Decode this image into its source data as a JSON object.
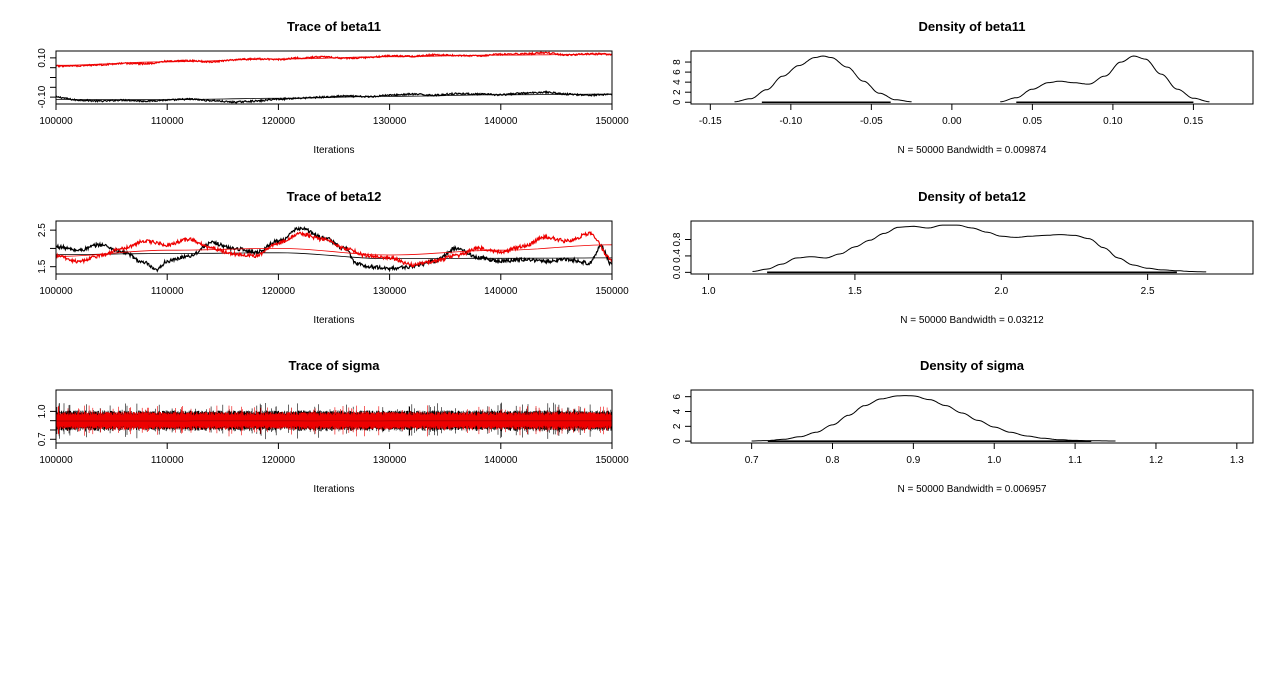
{
  "chart_data": [
    {
      "id": "trace-beta11",
      "type": "line",
      "title": "Trace of beta11",
      "xlabel": "Iterations",
      "ylabel": "",
      "xlim": [
        100000,
        150000
      ],
      "ylim": [
        -0.135,
        0.135
      ],
      "x_ticks": [
        100000,
        110000,
        120000,
        130000,
        140000,
        150000
      ],
      "y_ticks": [
        -0.1,
        0.1
      ],
      "y_tick_labels": [
        "-0.10",
        "0.10"
      ],
      "y_ticks_minor": [
        -0.05,
        0.0,
        0.05
      ],
      "y_tick_labels_rotated": true,
      "grid": false,
      "legend": "none",
      "series": [
        {
          "color": "#000000",
          "style": "trace",
          "x": [
            100000,
            102000,
            104000,
            106000,
            108000,
            110000,
            112000,
            114000,
            116000,
            118000,
            120000,
            122000,
            124000,
            126000,
            128000,
            130000,
            132000,
            134000,
            136000,
            138000,
            140000,
            142000,
            144000,
            146000,
            148000,
            150000
          ],
          "values": [
            -0.1,
            -0.115,
            -0.12,
            -0.115,
            -0.12,
            -0.115,
            -0.11,
            -0.118,
            -0.125,
            -0.12,
            -0.11,
            -0.105,
            -0.1,
            -0.095,
            -0.098,
            -0.09,
            -0.085,
            -0.09,
            -0.082,
            -0.085,
            -0.088,
            -0.08,
            -0.075,
            -0.085,
            -0.09,
            -0.085
          ],
          "noise": 0.004
        },
        {
          "color": "#000000",
          "style": "smooth",
          "x": [
            100000,
            110000,
            120000,
            130000,
            140000,
            150000
          ],
          "values": [
            -0.112,
            -0.113,
            -0.106,
            -0.096,
            -0.088,
            -0.085
          ]
        },
        {
          "color": "#ee0000",
          "style": "trace",
          "x": [
            100000,
            102000,
            104000,
            106000,
            108000,
            110000,
            112000,
            114000,
            116000,
            118000,
            120000,
            122000,
            124000,
            126000,
            128000,
            130000,
            132000,
            134000,
            136000,
            138000,
            140000,
            142000,
            144000,
            146000,
            148000,
            150000
          ],
          "values": [
            0.058,
            0.06,
            0.065,
            0.072,
            0.07,
            0.082,
            0.085,
            0.08,
            0.09,
            0.095,
            0.092,
            0.1,
            0.105,
            0.098,
            0.102,
            0.11,
            0.108,
            0.115,
            0.112,
            0.11,
            0.118,
            0.12,
            0.125,
            0.115,
            0.12,
            0.118
          ],
          "noise": 0.004
        },
        {
          "color": "#ee0000",
          "style": "smooth",
          "x": [
            100000,
            110000,
            120000,
            130000,
            140000,
            150000
          ],
          "values": [
            0.062,
            0.08,
            0.094,
            0.106,
            0.114,
            0.119
          ]
        }
      ]
    },
    {
      "id": "density-beta11",
      "type": "line",
      "title": "Density of beta11",
      "xlabel": "N = 50000   Bandwidth = 0.009874",
      "ylabel": "",
      "xlim": [
        -0.162,
        0.187
      ],
      "ylim": [
        -0.35,
        10.2
      ],
      "x_ticks": [
        -0.15,
        -0.1,
        -0.05,
        0.0,
        0.05,
        0.1,
        0.15
      ],
      "x_tick_labels": [
        "-0.15",
        "-0.10",
        "-0.05",
        "0.00",
        "0.05",
        "0.10",
        "0.15"
      ],
      "y_ticks": [
        0,
        2,
        4,
        6,
        8
      ],
      "y_tick_labels": [
        "0",
        "2",
        "4",
        "6",
        "8"
      ],
      "y_tick_labels_rotated": true,
      "grid": false,
      "legend": "none",
      "series": [
        {
          "color": "#000000",
          "style": "curve",
          "x": [
            -0.135,
            -0.125,
            -0.115,
            -0.105,
            -0.095,
            -0.085,
            -0.08,
            -0.075,
            -0.065,
            -0.055,
            -0.045,
            -0.035,
            -0.025
          ],
          "values": [
            0.1,
            0.7,
            2.5,
            5.2,
            7.3,
            8.9,
            9.2,
            8.9,
            7.0,
            4.2,
            1.8,
            0.5,
            0.1
          ]
        },
        {
          "color": "#000000",
          "style": "curve",
          "x": [
            0.03,
            0.04,
            0.05,
            0.06,
            0.067,
            0.075,
            0.085,
            0.095,
            0.105,
            0.113,
            0.12,
            0.13,
            0.14,
            0.15,
            0.16
          ],
          "values": [
            0.1,
            0.9,
            2.6,
            3.9,
            4.2,
            3.9,
            3.6,
            5.2,
            8.0,
            9.2,
            8.6,
            5.6,
            2.6,
            0.8,
            0.1
          ]
        },
        {
          "color": "#000000",
          "style": "rug",
          "x_ranges": [
            [
              -0.118,
              -0.038
            ],
            [
              0.04,
              0.15
            ]
          ]
        }
      ]
    },
    {
      "id": "trace-beta12",
      "type": "line",
      "title": "Trace of beta12",
      "xlabel": "Iterations",
      "ylabel": "",
      "xlim": [
        100000,
        150000
      ],
      "ylim": [
        1.3,
        2.75
      ],
      "x_ticks": [
        100000,
        110000,
        120000,
        130000,
        140000,
        150000
      ],
      "y_ticks": [
        1.5,
        2.5
      ],
      "y_tick_labels": [
        "1.5",
        "2.5"
      ],
      "y_ticks_minor": [
        2.0
      ],
      "y_tick_labels_rotated": true,
      "grid": false,
      "legend": "none",
      "series": [
        {
          "color": "#000000",
          "style": "trace",
          "x": [
            100000,
            102000,
            104000,
            106000,
            108000,
            109000,
            110000,
            112000,
            114000,
            116000,
            118000,
            120000,
            122000,
            124000,
            126000,
            127000,
            128000,
            130000,
            132000,
            134000,
            136000,
            138000,
            140000,
            142000,
            144000,
            146000,
            148000,
            149000,
            150000
          ],
          "values": [
            2.05,
            1.95,
            2.1,
            1.9,
            1.6,
            1.4,
            1.65,
            1.8,
            2.15,
            2.0,
            1.9,
            2.2,
            2.55,
            2.3,
            2.0,
            1.6,
            1.5,
            1.45,
            1.5,
            1.65,
            2.0,
            1.75,
            1.65,
            1.7,
            1.65,
            1.7,
            1.6,
            2.05,
            1.55
          ],
          "noise": 0.05
        },
        {
          "color": "#000000",
          "style": "smooth",
          "x": [
            100000,
            110000,
            120000,
            130000,
            140000,
            150000
          ],
          "values": [
            1.83,
            1.86,
            1.88,
            1.72,
            1.73,
            1.74
          ]
        },
        {
          "color": "#ee0000",
          "style": "trace",
          "x": [
            100000,
            102000,
            104000,
            106000,
            108000,
            110000,
            112000,
            114000,
            116000,
            118000,
            120000,
            122000,
            124000,
            126000,
            128000,
            130000,
            132000,
            134000,
            136000,
            138000,
            140000,
            142000,
            144000,
            146000,
            148000,
            150000
          ],
          "values": [
            1.8,
            1.65,
            1.8,
            2.0,
            2.2,
            2.1,
            2.25,
            2.0,
            1.85,
            1.8,
            2.15,
            2.4,
            2.25,
            2.0,
            1.8,
            1.75,
            1.55,
            1.65,
            1.8,
            2.0,
            1.9,
            2.05,
            2.3,
            2.2,
            2.4,
            1.7
          ],
          "noise": 0.05
        },
        {
          "color": "#ee0000",
          "style": "smooth",
          "x": [
            100000,
            110000,
            120000,
            130000,
            140000,
            150000
          ],
          "values": [
            1.78,
            1.95,
            2.0,
            1.82,
            1.95,
            2.1
          ]
        }
      ]
    },
    {
      "id": "density-beta12",
      "type": "line",
      "title": "Density of beta12",
      "xlabel": "N = 50000   Bandwidth = 0.03212",
      "ylabel": "",
      "xlim": [
        0.94,
        2.86
      ],
      "ylim": [
        -0.04,
        1.25
      ],
      "x_ticks": [
        1.0,
        1.5,
        2.0,
        2.5
      ],
      "x_tick_labels": [
        "1.0",
        "1.5",
        "2.0",
        "2.5"
      ],
      "y_ticks": [
        0.0,
        0.4,
        0.8
      ],
      "y_tick_labels": [
        "0.0",
        "0.4",
        "0.8"
      ],
      "y_tick_labels_rotated": true,
      "grid": false,
      "legend": "none",
      "series": [
        {
          "color": "#000000",
          "style": "curve",
          "x": [
            1.15,
            1.2,
            1.25,
            1.3,
            1.35,
            1.4,
            1.45,
            1.5,
            1.55,
            1.6,
            1.65,
            1.7,
            1.75,
            1.8,
            1.85,
            1.9,
            1.95,
            2.0,
            2.05,
            2.1,
            2.15,
            2.2,
            2.25,
            2.3,
            2.35,
            2.4,
            2.45,
            2.5,
            2.55,
            2.6,
            2.65,
            2.7
          ],
          "values": [
            0.02,
            0.08,
            0.2,
            0.35,
            0.38,
            0.35,
            0.45,
            0.62,
            0.78,
            0.95,
            1.1,
            1.12,
            1.08,
            1.15,
            1.15,
            1.08,
            0.98,
            0.88,
            0.85,
            0.88,
            0.9,
            0.92,
            0.9,
            0.82,
            0.6,
            0.35,
            0.18,
            0.1,
            0.06,
            0.04,
            0.02,
            0.01
          ]
        },
        {
          "color": "#000000",
          "style": "rug",
          "x_ranges": [
            [
              1.2,
              2.6
            ]
          ]
        }
      ]
    },
    {
      "id": "trace-sigma",
      "type": "line",
      "title": "Trace of sigma",
      "xlabel": "Iterations",
      "ylabel": "",
      "xlim": [
        100000,
        150000
      ],
      "ylim": [
        0.66,
        1.23
      ],
      "x_ticks": [
        100000,
        110000,
        120000,
        130000,
        140000,
        150000
      ],
      "y_ticks": [
        0.7,
        1.0
      ],
      "y_tick_labels": [
        "0.7",
        "1.0"
      ],
      "y_ticks_minor": [
        0.8,
        0.9
      ],
      "y_tick_labels_rotated": true,
      "grid": false,
      "legend": "none",
      "series": [
        {
          "color": "#000000",
          "style": "noise",
          "center": 0.895,
          "spread": 0.115,
          "spike": 0.2,
          "samples": 1800
        },
        {
          "color": "#ee0000",
          "style": "noise",
          "center": 0.895,
          "spread": 0.1,
          "spike": 0.17,
          "samples": 1800
        },
        {
          "color": "#000000",
          "style": "smooth",
          "x": [
            100000,
            125000,
            150000
          ],
          "values": [
            0.893,
            0.895,
            0.894
          ]
        },
        {
          "color": "#ee0000",
          "style": "smooth",
          "x": [
            100000,
            125000,
            150000
          ],
          "values": [
            0.892,
            0.894,
            0.893
          ]
        }
      ]
    },
    {
      "id": "density-sigma",
      "type": "line",
      "title": "Density of sigma",
      "xlabel": "N = 50000   Bandwidth = 0.006957",
      "ylabel": "",
      "xlim": [
        0.625,
        1.32
      ],
      "ylim": [
        -0.25,
        6.9
      ],
      "x_ticks": [
        0.7,
        0.8,
        0.9,
        1.0,
        1.1,
        1.2,
        1.3
      ],
      "x_tick_labels": [
        "0.7",
        "0.8",
        "0.9",
        "1.0",
        "1.1",
        "1.2",
        "1.3"
      ],
      "y_ticks": [
        0,
        2,
        4,
        6
      ],
      "y_tick_labels": [
        "0",
        "2",
        "4",
        "6"
      ],
      "y_tick_labels_rotated": true,
      "grid": false,
      "legend": "none",
      "series": [
        {
          "color": "#000000",
          "style": "curve",
          "x": [
            0.7,
            0.72,
            0.74,
            0.76,
            0.78,
            0.8,
            0.82,
            0.84,
            0.86,
            0.88,
            0.89,
            0.9,
            0.92,
            0.94,
            0.96,
            0.98,
            1.0,
            1.02,
            1.04,
            1.06,
            1.08,
            1.1,
            1.12,
            1.15
          ],
          "values": [
            0.02,
            0.08,
            0.25,
            0.6,
            1.2,
            2.2,
            3.5,
            4.8,
            5.7,
            6.1,
            6.15,
            6.1,
            5.6,
            4.8,
            3.8,
            2.8,
            1.9,
            1.2,
            0.7,
            0.4,
            0.2,
            0.1,
            0.05,
            0.02
          ]
        },
        {
          "color": "#000000",
          "style": "rug",
          "x_ranges": [
            [
              0.72,
              1.12
            ]
          ]
        }
      ]
    }
  ]
}
